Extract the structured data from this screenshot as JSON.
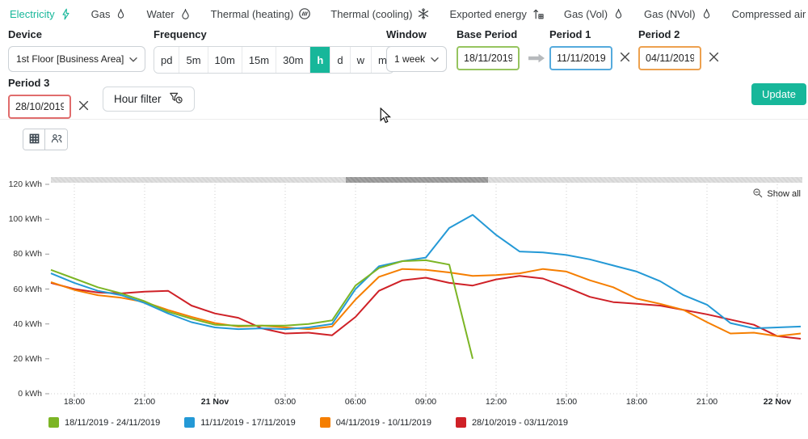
{
  "colors": {
    "accent": "#17b79a",
    "base_period_border": "#96c45f",
    "period1_border": "#55aadd",
    "period2_border": "#eda14f",
    "period3_border": "#e06c6c"
  },
  "nav": {
    "items": [
      {
        "label": "Electricity",
        "icon": "bolt-icon",
        "active": true
      },
      {
        "label": "Gas",
        "icon": "flame-icon",
        "active": false
      },
      {
        "label": "Water",
        "icon": "droplet-icon",
        "active": false
      },
      {
        "label": "Thermal (heating)",
        "icon": "heating-icon",
        "active": false
      },
      {
        "label": "Thermal (cooling)",
        "icon": "snowflake-icon",
        "active": false
      },
      {
        "label": "Exported energy",
        "icon": "export-icon",
        "active": false
      },
      {
        "label": "Gas (Vol)",
        "icon": "flame-icon",
        "active": false
      },
      {
        "label": "Gas (NVol)",
        "icon": "flame-icon",
        "active": false
      },
      {
        "label": "Compressed air volume",
        "icon": "gauge-icon",
        "active": false
      }
    ]
  },
  "controls": {
    "device": {
      "label": "Device",
      "value": "1st Floor [Business Area]"
    },
    "frequency": {
      "label": "Frequency",
      "options": [
        "pd",
        "5m",
        "10m",
        "15m",
        "30m",
        "h",
        "d",
        "w",
        "m"
      ],
      "selected": "h"
    },
    "window": {
      "label": "Window",
      "value": "1 week"
    },
    "base_period": {
      "label": "Base Period",
      "value": "18/11/2019"
    },
    "period1": {
      "label": "Period 1",
      "value": "11/11/2019"
    },
    "period2": {
      "label": "Period 2",
      "value": "04/11/2019"
    },
    "period3": {
      "label": "Period 3",
      "value": "28/10/2019"
    },
    "hour_filter_label": "Hour filter",
    "update_label": "Update"
  },
  "chart": {
    "show_all_label": "Show all"
  },
  "chart_data": {
    "type": "line",
    "unit": "kWh",
    "ylim": [
      0,
      120
    ],
    "y_ticks": [
      0,
      20,
      40,
      60,
      80,
      100,
      120
    ],
    "x_hours_start": "17:00 20 Nov",
    "x_count": 33,
    "x_tick_positions": [
      1,
      4,
      7,
      10,
      13,
      16,
      19,
      22,
      25,
      28,
      31
    ],
    "x_tick_labels": [
      "18:00",
      "21:00",
      "21 Nov",
      "03:00",
      "06:00",
      "09:00",
      "12:00",
      "15:00",
      "18:00",
      "21:00",
      "22 Nov"
    ],
    "x_tick_bold": [
      false,
      false,
      true,
      false,
      false,
      false,
      false,
      false,
      false,
      false,
      true
    ],
    "grid": "vertical-dotted",
    "legend_position": "bottom-left",
    "series": [
      {
        "name": "18/11/2019 - 24/11/2019",
        "color": "#7cb525",
        "values": [
          71,
          66,
          61,
          57.5,
          53,
          47,
          43,
          39.5,
          39,
          39,
          39,
          40,
          42,
          62,
          72,
          76,
          76.5,
          74,
          20,
          null,
          null,
          null,
          null,
          null,
          null,
          null,
          null,
          null,
          null,
          null,
          null,
          null,
          null
        ]
      },
      {
        "name": "11/11/2019 - 17/11/2019",
        "color": "#2499d6",
        "values": [
          69,
          63.5,
          59,
          56.5,
          52,
          46,
          41,
          38,
          37,
          37.5,
          37,
          38,
          40,
          60,
          73,
          76,
          78,
          95,
          102.5,
          91,
          81.5,
          81,
          79.5,
          77,
          73.5,
          70,
          64.5,
          56.5,
          51,
          40.5,
          37.5,
          38,
          38.5
        ]
      },
      {
        "name": "04/11/2019 - 10/11/2019",
        "color": "#f57e00",
        "values": [
          64,
          59.5,
          56.5,
          55,
          52.5,
          48,
          44,
          40.5,
          38.5,
          39,
          38,
          37,
          38.5,
          54,
          67,
          71.5,
          71,
          69.5,
          67.5,
          68,
          69,
          71.5,
          70,
          65,
          61,
          54.5,
          51.5,
          48,
          41,
          34.5,
          35,
          33,
          34.5
        ]
      },
      {
        "name": "28/10/2019 - 03/11/2019",
        "color": "#cf2127",
        "values": [
          63.5,
          60,
          58,
          57.5,
          58.5,
          59,
          50.5,
          46,
          43.5,
          37.5,
          34.5,
          35,
          33.5,
          44,
          59,
          65,
          66.5,
          63.5,
          62,
          65.5,
          67.5,
          66,
          61,
          55.5,
          52.5,
          51.5,
          50.5,
          48,
          45.5,
          42.5,
          39.5,
          33,
          31.5
        ]
      }
    ]
  }
}
